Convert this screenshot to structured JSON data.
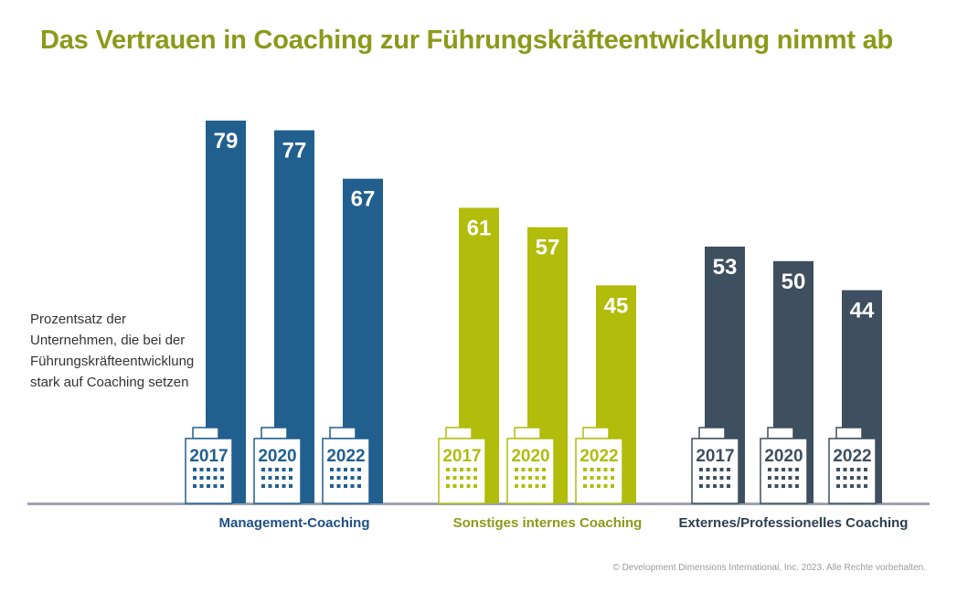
{
  "chart_data": {
    "type": "bar",
    "title": "Das Vertrauen in Coaching zur Führungskräfteentwicklung nimmt ab",
    "ylabel": "Prozentsatz der Unternehmen, die bei der Führungskräfteentwicklung stark auf Coaching setzen",
    "categories": [
      "Management-Coaching",
      "Sonstiges internes Coaching",
      "Externes/Professionelles Coaching"
    ],
    "series": [
      {
        "name": "2017",
        "values": [
          79,
          61,
          53
        ]
      },
      {
        "name": "2020",
        "values": [
          77,
          57,
          50
        ]
      },
      {
        "name": "2022",
        "values": [
          67,
          45,
          44
        ]
      }
    ],
    "group_colors": [
      "#215f8f",
      "#b1bc0b",
      "#3e4f5f"
    ],
    "group_label_colors": [
      "#1f4f86",
      "#8a9a1a",
      "#2c3e50"
    ],
    "ylim": [
      0,
      100
    ],
    "grid": false
  },
  "copyright": "© Development Dimensions International, Inc. 2023. Alle Rechte vorbehalten."
}
